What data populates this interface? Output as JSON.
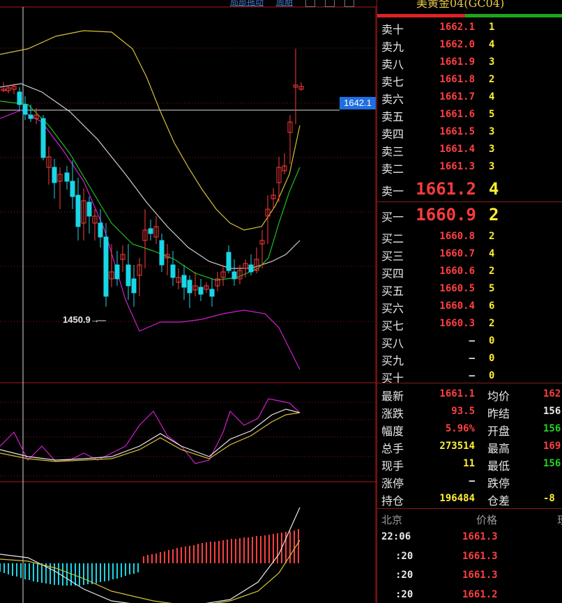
{
  "chart": {
    "top_links": [
      "局部拖动",
      "周期"
    ],
    "price_tag": "1642.1",
    "low_label": "1450.9→"
  },
  "instrument": {
    "title": "美黄金04(GC04)"
  },
  "order_book": {
    "asks": [
      {
        "label": "卖十",
        "price": "1662.1",
        "vol": "1"
      },
      {
        "label": "卖九",
        "price": "1662.0",
        "vol": "4"
      },
      {
        "label": "卖八",
        "price": "1661.9",
        "vol": "3"
      },
      {
        "label": "卖七",
        "price": "1661.8",
        "vol": "2"
      },
      {
        "label": "卖六",
        "price": "1661.7",
        "vol": "4"
      },
      {
        "label": "卖五",
        "price": "1661.6",
        "vol": "5"
      },
      {
        "label": "卖四",
        "price": "1661.5",
        "vol": "3"
      },
      {
        "label": "卖三",
        "price": "1661.4",
        "vol": "3"
      },
      {
        "label": "卖二",
        "price": "1661.3",
        "vol": "3"
      },
      {
        "label": "卖一",
        "price": "1661.2",
        "vol": "4"
      }
    ],
    "bids": [
      {
        "label": "买一",
        "price": "1660.9",
        "vol": "2"
      },
      {
        "label": "买二",
        "price": "1660.8",
        "vol": "2"
      },
      {
        "label": "买三",
        "price": "1660.7",
        "vol": "4"
      },
      {
        "label": "买四",
        "price": "1660.6",
        "vol": "2"
      },
      {
        "label": "买五",
        "price": "1660.5",
        "vol": "5"
      },
      {
        "label": "买六",
        "price": "1660.4",
        "vol": "6"
      },
      {
        "label": "买七",
        "price": "1660.3",
        "vol": "2"
      },
      {
        "label": "买八",
        "price": "—",
        "vol": "0"
      },
      {
        "label": "买九",
        "price": "—",
        "vol": "0"
      },
      {
        "label": "买十",
        "price": "—",
        "vol": "0"
      }
    ]
  },
  "stats": [
    {
      "l1": "最新",
      "v1": "1661.1",
      "c1": "red",
      "l2": "均价",
      "v2": "162",
      "c2": "red"
    },
    {
      "l1": "涨跌",
      "v1": "93.5",
      "c1": "red",
      "l2": "昨结",
      "v2": "156",
      "c2": "wht"
    },
    {
      "l1": "幅度",
      "v1": "5.96%",
      "c1": "red",
      "l2": "开盘",
      "v2": "156",
      "c2": "grn"
    },
    {
      "l1": "总手",
      "v1": "273514",
      "c1": "yel",
      "l2": "最高",
      "v2": "169",
      "c2": "red"
    },
    {
      "l1": "现手",
      "v1": "11",
      "c1": "yel",
      "l2": "最低",
      "v2": "156",
      "c2": "grn"
    },
    {
      "l1": "涨停",
      "v1": "—",
      "c1": "wht",
      "l2": "跌停",
      "v2": "",
      "c2": "wht"
    },
    {
      "l1": "持仓",
      "v1": "196484",
      "c1": "yel",
      "l2": "仓差",
      "v2": "-8",
      "c2": "yel"
    }
  ],
  "ticks": {
    "header_place": "北京",
    "header_price": "价格",
    "header_extra": "现",
    "rows": [
      {
        "time": "22:06",
        "price": "1661.3"
      },
      {
        "time": ":20",
        "price": "1661.3"
      },
      {
        "time": ":20",
        "price": "1661.3"
      },
      {
        "time": ":20",
        "price": "1661.2"
      }
    ]
  }
}
